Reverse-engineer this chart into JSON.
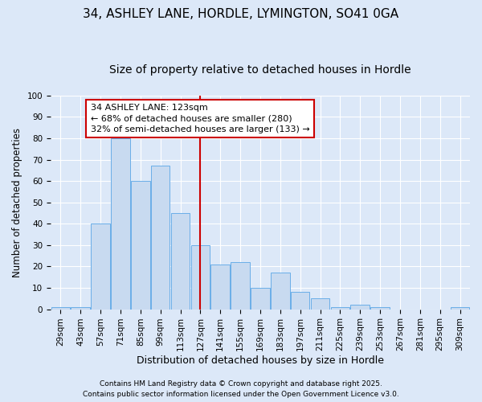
{
  "title1": "34, ASHLEY LANE, HORDLE, LYMINGTON, SO41 0GA",
  "title2": "Size of property relative to detached houses in Hordle",
  "xlabel": "Distribution of detached houses by size in Hordle",
  "ylabel": "Number of detached properties",
  "categories": [
    "29sqm",
    "43sqm",
    "57sqm",
    "71sqm",
    "85sqm",
    "99sqm",
    "113sqm",
    "127sqm",
    "141sqm",
    "155sqm",
    "169sqm",
    "183sqm",
    "197sqm",
    "211sqm",
    "225sqm",
    "239sqm",
    "253sqm",
    "267sqm",
    "281sqm",
    "295sqm",
    "309sqm"
  ],
  "values": [
    1,
    1,
    40,
    80,
    60,
    67,
    45,
    30,
    21,
    22,
    10,
    17,
    8,
    5,
    1,
    2,
    1,
    0,
    0,
    0,
    1
  ],
  "bar_color": "#c8daf0",
  "bar_edge_color": "#6aaee8",
  "bg_color": "#dce8f8",
  "grid_color": "#ffffff",
  "vline_index": 7,
  "vline_color": "#cc0000",
  "ann_line1": "34 ASHLEY LANE: 123sqm",
  "ann_line2": "← 68% of detached houses are smaller (280)",
  "ann_line3": "32% of semi-detached houses are larger (133) →",
  "annotation_box_color": "#cc0000",
  "annotation_bg": "#ffffff",
  "ylim": [
    0,
    100
  ],
  "yticks": [
    0,
    10,
    20,
    30,
    40,
    50,
    60,
    70,
    80,
    90,
    100
  ],
  "footer1": "Contains HM Land Registry data © Crown copyright and database right 2025.",
  "footer2": "Contains public sector information licensed under the Open Government Licence v3.0.",
  "title1_fontsize": 11,
  "title2_fontsize": 10,
  "tick_fontsize": 7.5,
  "ylabel_fontsize": 8.5,
  "xlabel_fontsize": 9,
  "ann_fontsize": 8,
  "footer_fontsize": 6.5
}
